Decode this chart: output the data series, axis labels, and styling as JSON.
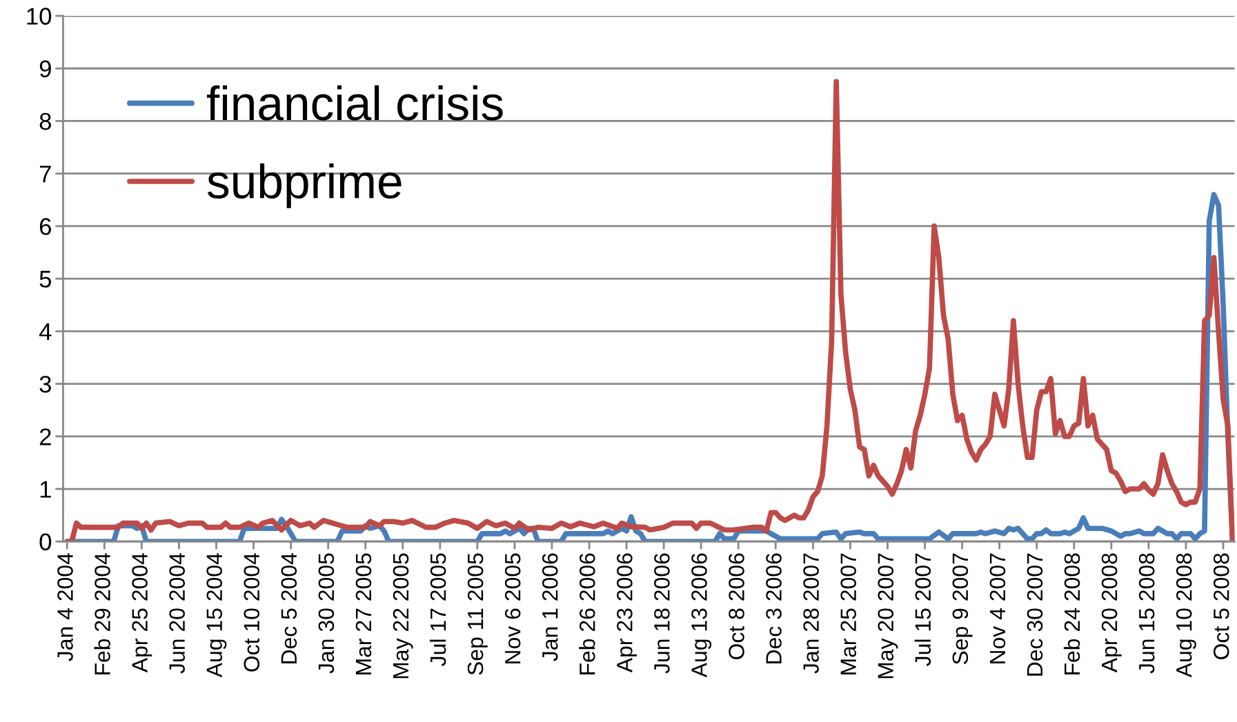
{
  "chart_data": {
    "type": "line",
    "xlim": [
      "2003-12-29",
      "2008-10-22"
    ],
    "ylim": [
      0,
      10
    ],
    "yticks": [
      0,
      1,
      2,
      3,
      4,
      5,
      6,
      7,
      8,
      9,
      10
    ],
    "xticks": [
      {
        "value": "2004-01-04",
        "label": "Jan 4 2004"
      },
      {
        "value": "2004-02-29",
        "label": "Feb 29 2004"
      },
      {
        "value": "2004-04-25",
        "label": "Apr 25 2004"
      },
      {
        "value": "2004-06-20",
        "label": "Jun 20 2004"
      },
      {
        "value": "2004-08-15",
        "label": "Aug 15 2004"
      },
      {
        "value": "2004-10-10",
        "label": "Oct 10 2004"
      },
      {
        "value": "2004-12-05",
        "label": "Dec 5 2004"
      },
      {
        "value": "2005-01-30",
        "label": "Jan 30 2005"
      },
      {
        "value": "2005-03-27",
        "label": "Mar 27 2005"
      },
      {
        "value": "2005-05-22",
        "label": "May 22 2005"
      },
      {
        "value": "2005-07-17",
        "label": "Jul 17 2005"
      },
      {
        "value": "2005-09-11",
        "label": "Sep 11 2005"
      },
      {
        "value": "2005-11-06",
        "label": "Nov 6 2005"
      },
      {
        "value": "2006-01-01",
        "label": "Jan 1 2006"
      },
      {
        "value": "2006-02-26",
        "label": "Feb 26 2006"
      },
      {
        "value": "2006-04-23",
        "label": "Apr 23 2006"
      },
      {
        "value": "2006-06-18",
        "label": "Jun 18 2006"
      },
      {
        "value": "2006-08-13",
        "label": "Aug 13 2006"
      },
      {
        "value": "2006-10-08",
        "label": "Oct 8 2006"
      },
      {
        "value": "2006-12-03",
        "label": "Dec 3 2006"
      },
      {
        "value": "2007-01-28",
        "label": "Jan 28 2007"
      },
      {
        "value": "2007-03-25",
        "label": "Mar 25 2007"
      },
      {
        "value": "2007-05-20",
        "label": "May 20 2007"
      },
      {
        "value": "2007-07-15",
        "label": "Jul 15 2007"
      },
      {
        "value": "2007-09-09",
        "label": "Sep 9 2007"
      },
      {
        "value": "2007-11-04",
        "label": "Nov 4 2007"
      },
      {
        "value": "2007-12-30",
        "label": "Dec 30 2007"
      },
      {
        "value": "2008-02-24",
        "label": "Feb 24 2008"
      },
      {
        "value": "2008-04-20",
        "label": "Apr 20 2008"
      },
      {
        "value": "2008-06-15",
        "label": "Jun 15 2008"
      },
      {
        "value": "2008-08-10",
        "label": "Aug 10 2008"
      },
      {
        "value": "2008-10-05",
        "label": "Oct 5 2008"
      }
    ],
    "grid": "y",
    "legend": "top left",
    "marker": "none",
    "line_style": "solid",
    "series": [
      {
        "name": "financial crisis",
        "color": "#4a7ebb",
        "x": [
          "2004-01-04",
          "2004-03-14",
          "2004-03-21",
          "2004-04-11",
          "2004-04-18",
          "2004-04-25",
          "2004-05-02",
          "2004-09-19",
          "2004-09-26",
          "2004-11-14",
          "2004-11-21",
          "2004-11-28",
          "2004-12-12",
          "2005-02-13",
          "2005-02-20",
          "2005-03-20",
          "2005-03-27",
          "2005-04-03",
          "2005-04-17",
          "2005-04-24",
          "2005-05-01",
          "2005-09-11",
          "2005-09-18",
          "2005-10-16",
          "2005-10-23",
          "2005-10-30",
          "2005-11-13",
          "2005-11-20",
          "2005-11-27",
          "2005-12-04",
          "2005-12-11",
          "2006-01-15",
          "2006-01-22",
          "2006-03-19",
          "2006-03-26",
          "2006-04-02",
          "2006-04-16",
          "2006-04-23",
          "2006-04-30",
          "2006-05-07",
          "2006-05-14",
          "2006-05-21",
          "2006-09-03",
          "2006-09-10",
          "2006-09-17",
          "2006-10-01",
          "2006-10-08",
          "2006-11-19",
          "2006-11-26",
          "2006-12-10",
          "2007-02-04",
          "2007-02-11",
          "2007-03-04",
          "2007-03-11",
          "2007-03-18",
          "2007-04-08",
          "2007-04-15",
          "2007-04-29",
          "2007-05-06",
          "2007-07-22",
          "2007-08-05",
          "2007-08-19",
          "2007-08-26",
          "2007-09-30",
          "2007-10-07",
          "2007-10-14",
          "2007-10-28",
          "2007-11-11",
          "2007-11-18",
          "2007-11-25",
          "2007-12-02",
          "2007-12-16",
          "2007-12-23",
          "2007-12-30",
          "2008-01-06",
          "2008-01-13",
          "2008-01-20",
          "2008-02-03",
          "2008-02-10",
          "2008-02-17",
          "2008-02-24",
          "2008-03-02",
          "2008-03-09",
          "2008-03-16",
          "2008-04-06",
          "2008-04-20",
          "2008-05-04",
          "2008-05-11",
          "2008-05-18",
          "2008-06-01",
          "2008-06-08",
          "2008-06-22",
          "2008-06-29",
          "2008-07-13",
          "2008-07-20",
          "2008-07-27",
          "2008-08-03",
          "2008-08-17",
          "2008-08-24",
          "2008-08-31",
          "2008-09-07",
          "2008-09-14",
          "2008-09-21",
          "2008-09-28",
          "2008-10-05",
          "2008-10-12",
          "2008-10-19"
        ],
        "values": [
          0,
          0,
          0.3,
          0.3,
          0.25,
          0.3,
          0,
          0,
          0.25,
          0.25,
          0.42,
          0.3,
          0,
          0,
          0.2,
          0.2,
          0.3,
          0.25,
          0.3,
          0.2,
          0,
          0,
          0.15,
          0.15,
          0.2,
          0.15,
          0.25,
          0.15,
          0.25,
          0.25,
          0,
          0,
          0.15,
          0.15,
          0.2,
          0.15,
          0.25,
          0.2,
          0.47,
          0.2,
          0.15,
          0,
          0,
          0.15,
          0.05,
          0.05,
          0.2,
          0.2,
          0.15,
          0.05,
          0.05,
          0.15,
          0.18,
          0.05,
          0.15,
          0.18,
          0.15,
          0.15,
          0.05,
          0.05,
          0.18,
          0.05,
          0.15,
          0.15,
          0.18,
          0.15,
          0.2,
          0.15,
          0.25,
          0.22,
          0.25,
          0.05,
          0.05,
          0.15,
          0.15,
          0.22,
          0.15,
          0.15,
          0.18,
          0.15,
          0.2,
          0.25,
          0.45,
          0.25,
          0.25,
          0.2,
          0.1,
          0.15,
          0.15,
          0.2,
          0.15,
          0.15,
          0.25,
          0.15,
          0.15,
          0.05,
          0.15,
          0.15,
          0.05,
          0.15,
          0.2,
          6.1,
          6.6,
          6.4,
          4.5,
          2.0,
          0
        ]
      },
      {
        "name": "subprime",
        "color": "#be4b48",
        "x": [
          "2004-01-04",
          "2004-01-11",
          "2004-01-18",
          "2004-01-25",
          "2004-03-21",
          "2004-03-28",
          "2004-04-18",
          "2004-04-25",
          "2004-05-02",
          "2004-05-09",
          "2004-05-16",
          "2004-06-06",
          "2004-06-20",
          "2004-07-04",
          "2004-07-25",
          "2004-08-01",
          "2004-08-22",
          "2004-08-29",
          "2004-09-05",
          "2004-09-19",
          "2004-10-03",
          "2004-10-17",
          "2004-10-24",
          "2004-11-07",
          "2004-11-21",
          "2004-12-05",
          "2004-12-19",
          "2005-01-02",
          "2005-01-09",
          "2005-01-23",
          "2005-02-06",
          "2005-02-27",
          "2005-03-27",
          "2005-04-03",
          "2005-04-17",
          "2005-04-24",
          "2005-05-08",
          "2005-05-22",
          "2005-06-05",
          "2005-06-26",
          "2005-07-10",
          "2005-07-24",
          "2005-08-07",
          "2005-08-28",
          "2005-09-11",
          "2005-09-25",
          "2005-10-09",
          "2005-10-23",
          "2005-11-06",
          "2005-11-13",
          "2005-11-27",
          "2005-12-11",
          "2006-01-01",
          "2006-01-15",
          "2006-01-29",
          "2006-02-12",
          "2006-03-05",
          "2006-03-19",
          "2006-04-09",
          "2006-04-16",
          "2006-04-30",
          "2006-05-21",
          "2006-05-28",
          "2006-06-18",
          "2006-07-02",
          "2006-07-30",
          "2006-08-06",
          "2006-08-13",
          "2006-08-27",
          "2006-09-17",
          "2006-10-01",
          "2006-10-29",
          "2006-11-12",
          "2006-11-19",
          "2006-11-26",
          "2006-12-03",
          "2006-12-10",
          "2006-12-17",
          "2006-12-24",
          "2006-12-31",
          "2007-01-07",
          "2007-01-14",
          "2007-01-21",
          "2007-01-28",
          "2007-02-04",
          "2007-02-11",
          "2007-02-18",
          "2007-02-25",
          "2007-03-04",
          "2007-03-11",
          "2007-03-18",
          "2007-03-25",
          "2007-04-01",
          "2007-04-08",
          "2007-04-15",
          "2007-04-22",
          "2007-04-29",
          "2007-05-06",
          "2007-05-13",
          "2007-05-20",
          "2007-05-27",
          "2007-06-03",
          "2007-06-10",
          "2007-06-17",
          "2007-06-24",
          "2007-07-01",
          "2007-07-08",
          "2007-07-15",
          "2007-07-22",
          "2007-07-29",
          "2007-08-05",
          "2007-08-12",
          "2007-08-19",
          "2007-08-26",
          "2007-09-02",
          "2007-09-09",
          "2007-09-16",
          "2007-09-23",
          "2007-09-30",
          "2007-10-07",
          "2007-10-14",
          "2007-10-21",
          "2007-10-28",
          "2007-11-04",
          "2007-11-11",
          "2007-11-18",
          "2007-11-25",
          "2007-12-02",
          "2007-12-09",
          "2007-12-16",
          "2007-12-23",
          "2007-12-30",
          "2008-01-06",
          "2008-01-13",
          "2008-01-20",
          "2008-01-27",
          "2008-02-03",
          "2008-02-10",
          "2008-02-17",
          "2008-02-24",
          "2008-03-02",
          "2008-03-09",
          "2008-03-16",
          "2008-03-23",
          "2008-03-30",
          "2008-04-06",
          "2008-04-13",
          "2008-04-20",
          "2008-04-27",
          "2008-05-04",
          "2008-05-11",
          "2008-05-18",
          "2008-05-25",
          "2008-06-01",
          "2008-06-08",
          "2008-06-15",
          "2008-06-22",
          "2008-06-29",
          "2008-07-06",
          "2008-07-13",
          "2008-07-20",
          "2008-07-27",
          "2008-08-03",
          "2008-08-10",
          "2008-08-17",
          "2008-08-24",
          "2008-08-31",
          "2008-09-07",
          "2008-09-14",
          "2008-09-21",
          "2008-09-28",
          "2008-10-05",
          "2008-10-12",
          "2008-10-19"
        ],
        "values": [
          0,
          0,
          0.35,
          0.27,
          0.27,
          0.35,
          0.35,
          0.25,
          0.35,
          0.22,
          0.35,
          0.38,
          0.3,
          0.35,
          0.35,
          0.27,
          0.27,
          0.35,
          0.27,
          0.27,
          0.35,
          0.27,
          0.35,
          0.4,
          0.22,
          0.4,
          0.3,
          0.35,
          0.27,
          0.4,
          0.35,
          0.27,
          0.27,
          0.38,
          0.3,
          0.38,
          0.38,
          0.35,
          0.4,
          0.27,
          0.27,
          0.35,
          0.4,
          0.35,
          0.25,
          0.38,
          0.3,
          0.35,
          0.25,
          0.35,
          0.22,
          0.27,
          0.25,
          0.35,
          0.28,
          0.35,
          0.28,
          0.35,
          0.25,
          0.35,
          0.28,
          0.27,
          0.22,
          0.27,
          0.35,
          0.35,
          0.25,
          0.35,
          0.35,
          0.22,
          0.22,
          0.27,
          0.27,
          0.2,
          0.55,
          0.55,
          0.45,
          0.4,
          0.45,
          0.5,
          0.45,
          0.45,
          0.6,
          0.85,
          0.95,
          1.25,
          2.2,
          3.8,
          8.75,
          4.7,
          3.6,
          2.9,
          2.5,
          1.8,
          1.75,
          1.25,
          1.45,
          1.25,
          1.15,
          1.05,
          0.9,
          1.1,
          1.35,
          1.75,
          1.4,
          2.1,
          2.4,
          2.8,
          3.3,
          6.0,
          5.4,
          4.3,
          3.85,
          2.8,
          2.3,
          2.4,
          1.95,
          1.7,
          1.55,
          1.75,
          1.85,
          2.0,
          2.8,
          2.5,
          2.2,
          2.9,
          4.2,
          3.0,
          2.2,
          1.6,
          1.6,
          2.5,
          2.85,
          2.85,
          3.1,
          2.05,
          2.3,
          2.0,
          2.0,
          2.2,
          2.25,
          3.1,
          2.2,
          2.4,
          1.95,
          1.85,
          1.75,
          1.35,
          1.3,
          1.15,
          0.95,
          1.0,
          1.0,
          1.0,
          1.1,
          0.98,
          0.9,
          1.1,
          1.65,
          1.35,
          1.1,
          0.95,
          0.75,
          0.7,
          0.75,
          0.75,
          1.0,
          4.2,
          4.3,
          5.4,
          4.0,
          2.7,
          2.2,
          0
        ]
      }
    ]
  }
}
